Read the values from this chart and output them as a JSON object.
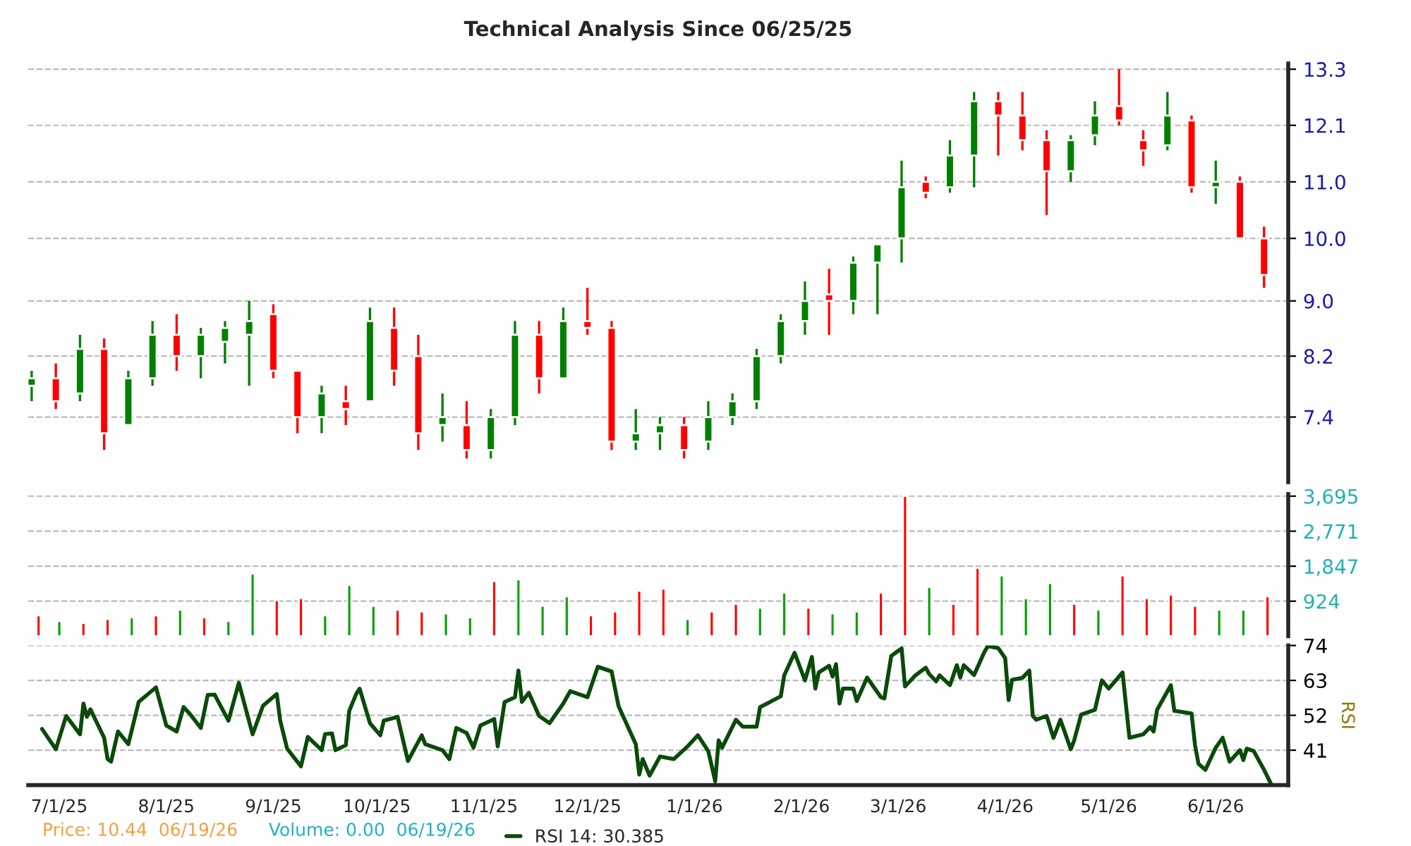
{
  "chart_data": [
    {
      "type": "candlestick",
      "title": "Technical Analysis Since 06/25/25",
      "log": "y",
      "grid": "y",
      "tick_labels": "y",
      "x": [
        "2025-06-23",
        "2025-06-30",
        "2025-07-07",
        "2025-07-14",
        "2025-07-21",
        "2025-07-28",
        "2025-08-04",
        "2025-08-11",
        "2025-08-18",
        "2025-08-25",
        "2025-09-01",
        "2025-09-08",
        "2025-09-15",
        "2025-09-22",
        "2025-09-29",
        "2025-10-06",
        "2025-10-13",
        "2025-10-20",
        "2025-10-27",
        "2025-11-03",
        "2025-11-10",
        "2025-11-17",
        "2025-11-24",
        "2025-12-01",
        "2025-12-08",
        "2025-12-15",
        "2025-12-22",
        "2025-12-29",
        "2026-01-05",
        "2026-01-12",
        "2026-01-19",
        "2026-01-26",
        "2026-02-02",
        "2026-02-09",
        "2026-02-16",
        "2026-02-23",
        "2026-03-02",
        "2026-03-09",
        "2026-03-16",
        "2026-03-23",
        "2026-03-30",
        "2026-04-06",
        "2026-04-13",
        "2026-04-20",
        "2026-04-27",
        "2026-05-04",
        "2026-05-11",
        "2026-05-18",
        "2026-05-25",
        "2026-06-01",
        "2026-06-08",
        "2026-06-15"
      ],
      "ohlc": [
        [
          7.8,
          8.0,
          7.6,
          7.9
        ],
        [
          7.9,
          8.1,
          7.5,
          7.6
        ],
        [
          7.7,
          8.5,
          7.6,
          8.3
        ],
        [
          8.3,
          8.45,
          7.0,
          7.2
        ],
        [
          7.3,
          8.0,
          7.3,
          7.9
        ],
        [
          7.9,
          8.7,
          7.8,
          8.5
        ],
        [
          8.5,
          8.8,
          8.0,
          8.2
        ],
        [
          8.2,
          8.6,
          7.9,
          8.5
        ],
        [
          8.4,
          8.7,
          8.1,
          8.6
        ],
        [
          8.5,
          9.0,
          7.8,
          8.7
        ],
        [
          8.8,
          8.95,
          7.9,
          8.0
        ],
        [
          8.0,
          8.0,
          7.2,
          7.4
        ],
        [
          7.4,
          7.8,
          7.2,
          7.7
        ],
        [
          7.6,
          7.8,
          7.3,
          7.5
        ],
        [
          7.6,
          8.9,
          7.6,
          8.7
        ],
        [
          8.6,
          8.9,
          7.8,
          8.0
        ],
        [
          8.2,
          8.5,
          7.0,
          7.2
        ],
        [
          7.3,
          7.7,
          7.1,
          7.4
        ],
        [
          7.3,
          7.6,
          6.9,
          7.0
        ],
        [
          7.0,
          7.5,
          6.9,
          7.4
        ],
        [
          7.4,
          8.7,
          7.3,
          8.5
        ],
        [
          8.5,
          8.7,
          7.7,
          7.9
        ],
        [
          7.9,
          8.9,
          7.9,
          8.7
        ],
        [
          8.7,
          9.2,
          8.5,
          8.6
        ],
        [
          8.6,
          8.7,
          7.0,
          7.1
        ],
        [
          7.1,
          7.5,
          7.0,
          7.2
        ],
        [
          7.2,
          7.4,
          7.0,
          7.3
        ],
        [
          7.3,
          7.4,
          6.9,
          7.0
        ],
        [
          7.1,
          7.6,
          7.0,
          7.4
        ],
        [
          7.4,
          7.7,
          7.3,
          7.6
        ],
        [
          7.6,
          8.3,
          7.5,
          8.2
        ],
        [
          8.2,
          8.8,
          8.1,
          8.7
        ],
        [
          8.7,
          9.3,
          8.5,
          9.0
        ],
        [
          9.1,
          9.5,
          8.5,
          9.0
        ],
        [
          9.0,
          9.7,
          8.8,
          9.6
        ],
        [
          9.6,
          9.9,
          8.8,
          9.9
        ],
        [
          10.0,
          11.4,
          9.6,
          10.9
        ],
        [
          11.0,
          11.1,
          10.7,
          10.8
        ],
        [
          10.9,
          11.8,
          10.8,
          11.5
        ],
        [
          11.5,
          12.8,
          10.9,
          12.6
        ],
        [
          12.6,
          12.8,
          11.5,
          12.3
        ],
        [
          12.3,
          12.8,
          11.6,
          11.8
        ],
        [
          11.8,
          12.0,
          10.4,
          11.2
        ],
        [
          11.2,
          11.9,
          11.0,
          11.8
        ],
        [
          11.9,
          12.6,
          11.7,
          12.3
        ],
        [
          12.5,
          13.3,
          12.1,
          12.2
        ],
        [
          11.8,
          12.0,
          11.3,
          11.6
        ],
        [
          11.7,
          12.8,
          11.6,
          12.3
        ],
        [
          12.2,
          12.3,
          10.8,
          10.9
        ],
        [
          10.9,
          11.4,
          10.6,
          11.0
        ],
        [
          11.0,
          11.1,
          10.0,
          10.0
        ],
        [
          10.0,
          10.2,
          9.2,
          9.4
        ]
      ],
      "colors": [
        "#008000",
        "#ff0000",
        "#008000",
        "#ff0000",
        "#008000",
        "#008000",
        "#ff0000",
        "#008000",
        "#008000",
        "#008000",
        "#ff0000",
        "#ff0000",
        "#008000",
        "#ff0000",
        "#008000",
        "#ff0000",
        "#ff0000",
        "#008000",
        "#ff0000",
        "#008000",
        "#008000",
        "#ff0000",
        "#008000",
        "#ff0000",
        "#ff0000",
        "#008000",
        "#008000",
        "#ff0000",
        "#008000",
        "#008000",
        "#008000",
        "#008000",
        "#008000",
        "#ff0000",
        "#008000",
        "#008000",
        "#008000",
        "#ff0000",
        "#008000",
        "#008000",
        "#ff0000",
        "#ff0000",
        "#ff0000",
        "#008000",
        "#008000",
        "#ff0000",
        "#ff0000",
        "#008000",
        "#ff0000",
        "#008000",
        "#ff0000",
        "#ff0000"
      ],
      "xlim": [
        "2025-06-22",
        "2026-06-22"
      ],
      "ylim": [
        6.63,
        13.43
      ],
      "yticks": [
        7.4,
        8.2,
        {
          "value": 9,
          "label": "9.0"
        },
        {
          "value": 10,
          "label": "10.0"
        },
        {
          "value": 11,
          "label": "11.0"
        },
        12.1,
        13.3
      ],
      "annotations": [
        "Price: 10.44  06/19/26"
      ]
    },
    {
      "type": "bar",
      "grid": "y",
      "tick_labels": "y",
      "x": [
        "2025-06-25",
        "2025-07-01",
        "2025-07-08",
        "2025-07-15",
        "2025-07-22",
        "2025-07-29",
        "2025-08-05",
        "2025-08-12",
        "2025-08-19",
        "2025-08-26",
        "2025-09-02",
        "2025-09-09",
        "2025-09-16",
        "2025-09-23",
        "2025-09-30",
        "2025-10-07",
        "2025-10-14",
        "2025-10-21",
        "2025-10-28",
        "2025-11-04",
        "2025-11-11",
        "2025-11-18",
        "2025-11-25",
        "2025-12-02",
        "2025-12-09",
        "2025-12-16",
        "2025-12-23",
        "2025-12-30",
        "2026-01-06",
        "2026-01-13",
        "2026-01-20",
        "2026-01-27",
        "2026-02-03",
        "2026-02-10",
        "2026-02-17",
        "2026-02-24",
        "2026-03-03",
        "2026-03-10",
        "2026-03-17",
        "2026-03-24",
        "2026-03-31",
        "2026-04-07",
        "2026-04-14",
        "2026-04-21",
        "2026-04-28",
        "2026-05-05",
        "2026-05-12",
        "2026-05-19",
        "2026-05-26",
        "2026-06-02",
        "2026-06-09",
        "2026-06-16"
      ],
      "values": [
        550,
        400,
        350,
        450,
        500,
        550,
        700,
        500,
        400,
        1650,
        950,
        1000,
        550,
        1350,
        800,
        700,
        650,
        600,
        500,
        1450,
        1500,
        800,
        1050,
        550,
        650,
        1200,
        1250,
        450,
        650,
        850,
        750,
        1150,
        750,
        600,
        650,
        1150,
        3700,
        1300,
        850,
        1800,
        1600,
        1000,
        1400,
        850,
        700,
        1600,
        1000,
        1100,
        800,
        700,
        700,
        1050
      ],
      "colors": [
        "#ff0000",
        "#00a000",
        "#ff0000",
        "#ff0000",
        "#00a000",
        "#ff0000",
        "#00a000",
        "#ff0000",
        "#00a000",
        "#00a000",
        "#ff0000",
        "#ff0000",
        "#00a000",
        "#00a000",
        "#00a000",
        "#ff0000",
        "#ff0000",
        "#00a000",
        "#00a000",
        "#ff0000",
        "#00a000",
        "#00a000",
        "#00a000",
        "#ff0000",
        "#ff0000",
        "#ff0000",
        "#ff0000",
        "#00a000",
        "#ff0000",
        "#ff0000",
        "#00a000",
        "#00a000",
        "#ff0000",
        "#00a000",
        "#00a000",
        "#ff0000",
        "#ff0000",
        "#00a000",
        "#ff0000",
        "#ff0000",
        "#00a000",
        "#00a000",
        "#00a000",
        "#ff0000",
        "#00a000",
        "#ff0000",
        "#ff0000",
        "#ff0000",
        "#ff0000",
        "#00a000",
        "#00a000",
        "#ff0000"
      ],
      "xlim": [
        "2025-06-22",
        "2026-06-22"
      ],
      "ylim": [
        0,
        3750
      ],
      "yticks": [
        {
          "value": 924,
          "label": "924"
        },
        {
          "value": 1847,
          "label": "1,847"
        },
        {
          "value": 2771,
          "label": "2,771"
        },
        {
          "value": 3695,
          "label": "3,695"
        }
      ],
      "annotations": [
        "Volume: 0.00  06/19/26"
      ]
    },
    {
      "type": "line",
      "grid": "y",
      "ylabel": "RSI",
      "legend": "bottom",
      "series": [
        {
          "name": "RSI 14: 30.385",
          "color": "#0a4a0a",
          "x": [
            "2025-06-26",
            "2025-06-30",
            "2025-07-03",
            "2025-07-07",
            "2025-07-08",
            "2025-07-09",
            "2025-07-10",
            "2025-07-14",
            "2025-07-15",
            "2025-07-16",
            "2025-07-18",
            "2025-07-21",
            "2025-07-24",
            "2025-07-29",
            "2025-08-01",
            "2025-08-04",
            "2025-08-06",
            "2025-08-08",
            "2025-08-11",
            "2025-08-13",
            "2025-08-15",
            "2025-08-19",
            "2025-08-22",
            "2025-08-26",
            "2025-08-29",
            "2025-09-02",
            "2025-09-03",
            "2025-09-05",
            "2025-09-09",
            "2025-09-11",
            "2025-09-15",
            "2025-09-16",
            "2025-09-18",
            "2025-09-19",
            "2025-09-22",
            "2025-09-23",
            "2025-09-25",
            "2025-09-26",
            "2025-09-29",
            "2025-10-02",
            "2025-10-03",
            "2025-10-07",
            "2025-10-10",
            "2025-10-14",
            "2025-10-15",
            "2025-10-20",
            "2025-10-22",
            "2025-10-24",
            "2025-10-27",
            "2025-10-29",
            "2025-10-31",
            "2025-11-04",
            "2025-11-05",
            "2025-11-07",
            "2025-11-10",
            "2025-11-11",
            "2025-11-12",
            "2025-11-14",
            "2025-11-17",
            "2025-11-20",
            "2025-11-24",
            "2025-11-26",
            "2025-12-01",
            "2025-12-04",
            "2025-12-08",
            "2025-12-10",
            "2025-12-15",
            "2025-12-16",
            "2025-12-17",
            "2025-12-19",
            "2025-12-22",
            "2025-12-26",
            "2025-12-30",
            "2026-01-02",
            "2026-01-05",
            "2026-01-07",
            "2026-01-08",
            "2026-01-09",
            "2026-01-13",
            "2026-01-15",
            "2026-01-19",
            "2026-01-20",
            "2026-01-22",
            "2026-01-26",
            "2026-01-27",
            "2026-01-30",
            "2026-02-02",
            "2026-02-04",
            "2026-02-05",
            "2026-02-06",
            "2026-02-09",
            "2026-02-10",
            "2026-02-11",
            "2026-02-12",
            "2026-02-13",
            "2026-02-16",
            "2026-02-17",
            "2026-02-20",
            "2026-02-24",
            "2026-02-25",
            "2026-02-27",
            "2026-03-02",
            "2026-03-03",
            "2026-03-06",
            "2026-03-09",
            "2026-03-10",
            "2026-03-12",
            "2026-03-13",
            "2026-03-16",
            "2026-03-18",
            "2026-03-19",
            "2026-03-20",
            "2026-03-23",
            "2026-03-26",
            "2026-03-27",
            "2026-03-30",
            "2026-04-01",
            "2026-04-02",
            "2026-04-03",
            "2026-04-06",
            "2026-04-08",
            "2026-04-09",
            "2026-04-10",
            "2026-04-13",
            "2026-04-15",
            "2026-04-17",
            "2026-04-20",
            "2026-04-21",
            "2026-04-23",
            "2026-04-27",
            "2026-04-29",
            "2026-05-01",
            "2026-05-05",
            "2026-05-07",
            "2026-05-11",
            "2026-05-13",
            "2026-05-14",
            "2026-05-15",
            "2026-05-19",
            "2026-05-20",
            "2026-05-22",
            "2026-05-25",
            "2026-05-26",
            "2026-05-27",
            "2026-05-29",
            "2026-06-01",
            "2026-06-03",
            "2026-06-05",
            "2026-06-08",
            "2026-06-09",
            "2026-06-10",
            "2026-06-12",
            "2026-06-15",
            "2026-06-17"
          ],
          "values": [
            47.7,
            41.3,
            51.8,
            46.0,
            55.7,
            51.5,
            53.9,
            44.9,
            38.2,
            37.4,
            46.9,
            42.9,
            56.2,
            60.8,
            48.8,
            46.9,
            54.6,
            52.2,
            48.0,
            58.4,
            58.5,
            50.3,
            62.2,
            46.0,
            55.0,
            58.7,
            50.3,
            41.5,
            35.9,
            45.2,
            41.0,
            46.1,
            46.3,
            41.0,
            42.6,
            53.4,
            58.7,
            60.4,
            49.5,
            45.7,
            50.3,
            51.5,
            37.6,
            45.7,
            42.9,
            41.0,
            38.2,
            48.0,
            46.4,
            41.8,
            48.8,
            50.8,
            42.2,
            56.2,
            57.7,
            66.1,
            56.2,
            59.1,
            51.8,
            49.5,
            55.7,
            59.6,
            57.7,
            67.3,
            65.8,
            54.9,
            42.9,
            33.3,
            38.2,
            33.0,
            39.0,
            38.2,
            42.2,
            45.7,
            40.7,
            31.2,
            44.1,
            41.8,
            50.6,
            48.4,
            48.4,
            54.6,
            55.7,
            58.0,
            64.6,
            71.7,
            63.0,
            70.4,
            60.4,
            65.5,
            67.6,
            64.2,
            68.1,
            55.7,
            60.4,
            60.4,
            56.5,
            63.9,
            57.7,
            57.3,
            70.7,
            73.1,
            61.1,
            64.6,
            67.0,
            65.0,
            62.7,
            64.6,
            61.5,
            67.8,
            63.9,
            67.8,
            64.7,
            72.0,
            73.8,
            73.2,
            70.0,
            56.8,
            63.2,
            63.8,
            66.1,
            51.8,
            50.6,
            51.8,
            44.9,
            50.6,
            41.3,
            44.1,
            52.2,
            53.7,
            63.0,
            60.4,
            65.5,
            44.9,
            46.0,
            48.3,
            46.9,
            53.7,
            61.5,
            53.4,
            53.1,
            52.6,
            42.6,
            36.7,
            34.8,
            41.8,
            44.9,
            37.4,
            41.0,
            37.9,
            41.5,
            40.7,
            34.8,
            30.4
          ]
        }
      ],
      "xlim": [
        "2025-06-22",
        "2026-06-22"
      ],
      "xticks": [
        {
          "value": "2025-07-01",
          "label": "7/1/25"
        },
        {
          "value": "2025-08-01",
          "label": "8/1/25"
        },
        {
          "value": "2025-09-01",
          "label": "9/1/25"
        },
        {
          "value": "2025-10-01",
          "label": "10/1/25"
        },
        {
          "value": "2025-11-01",
          "label": "11/1/25"
        },
        {
          "value": "2025-12-01",
          "label": "12/1/25"
        },
        {
          "value": "2026-01-01",
          "label": "1/1/26"
        },
        {
          "value": "2026-02-01",
          "label": "2/1/26"
        },
        {
          "value": "2026-03-01",
          "label": "3/1/26"
        },
        {
          "value": "2026-04-01",
          "label": "4/1/26"
        },
        {
          "value": "2026-05-01",
          "label": "5/1/26"
        },
        {
          "value": "2026-06-01",
          "label": "6/1/26"
        }
      ],
      "ylim": [
        30,
        74
      ],
      "yticks": [
        41,
        52,
        63,
        74
      ]
    }
  ]
}
